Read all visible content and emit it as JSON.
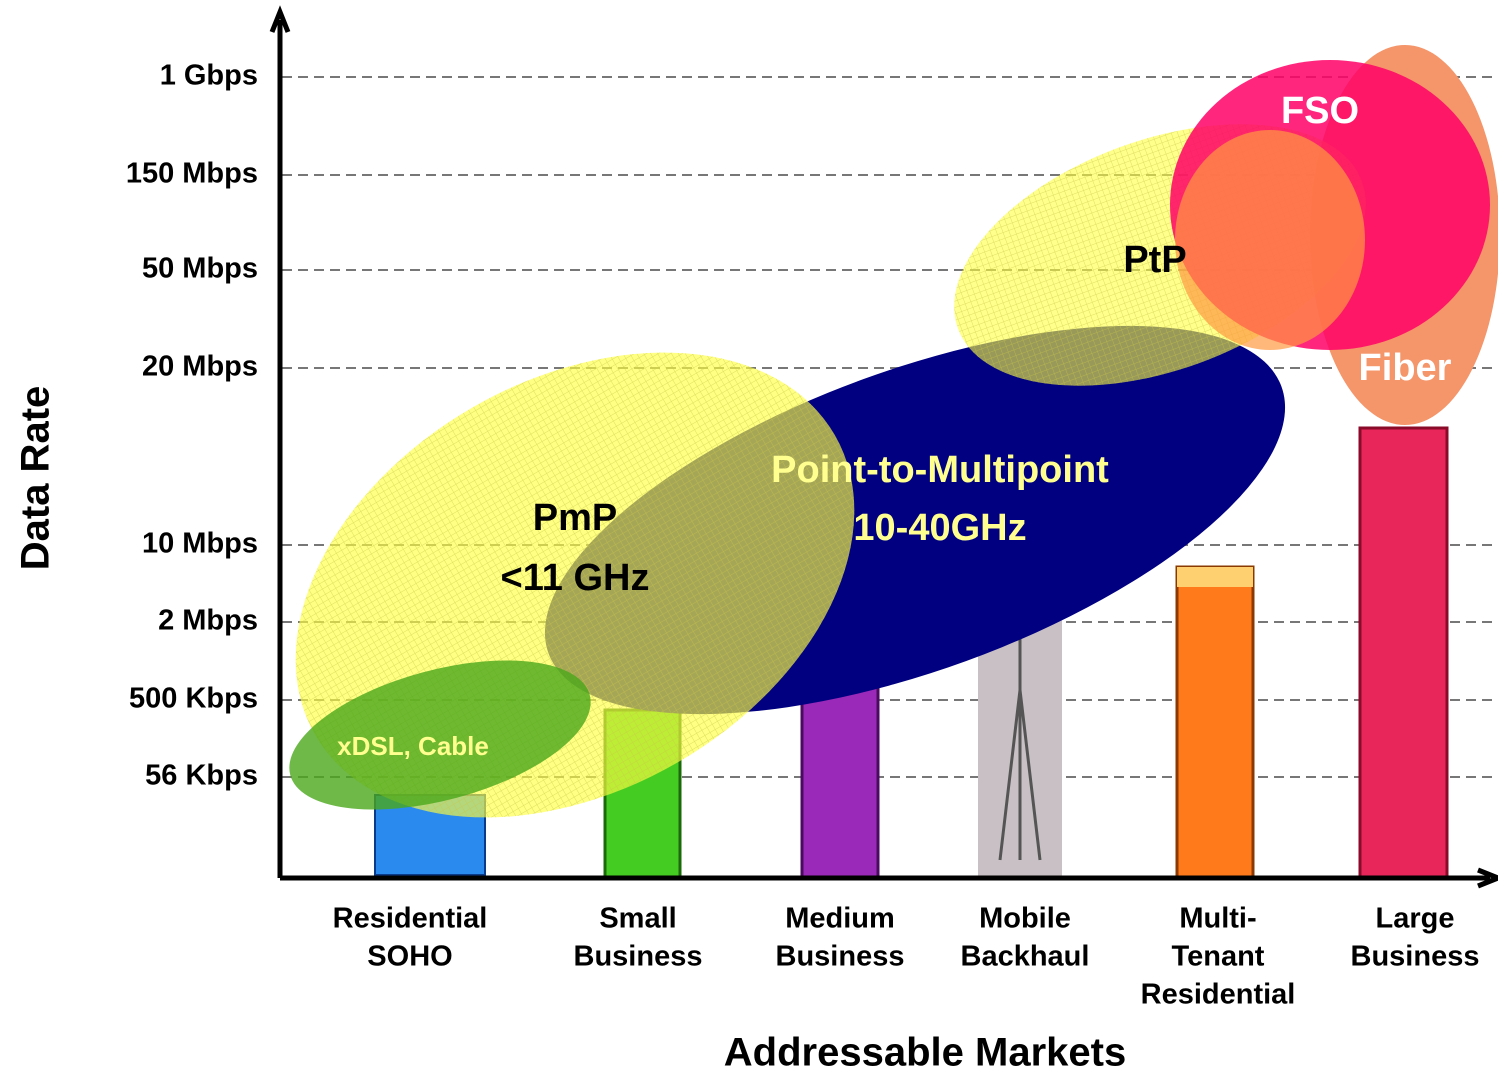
{
  "axes": {
    "y_title": "Data Rate",
    "x_title": "Addressable Markets"
  },
  "y_levels": [
    "1 Gbps",
    "150 Mbps",
    "50 Mbps",
    "20 Mbps",
    "10 Mbps",
    "2 Mbps",
    "500 Kbps",
    "56 Kbps"
  ],
  "markets": [
    [
      "Residential",
      "SOHO"
    ],
    [
      "Small",
      "Business"
    ],
    [
      "Medium",
      "Business"
    ],
    [
      "Mobile",
      "Backhaul"
    ],
    [
      "Multi-",
      "Tenant",
      "Residential"
    ],
    [
      "Large",
      "Business"
    ]
  ],
  "regions": {
    "fso": "FSO",
    "ptp": "PtP",
    "fiber": "Fiber",
    "pmp_high": [
      "Point-to-Multipoint",
      "10-40GHz"
    ],
    "pmp_low": [
      "PmP",
      "<11 GHz"
    ],
    "xdsl": "xDSL, Cable"
  }
}
